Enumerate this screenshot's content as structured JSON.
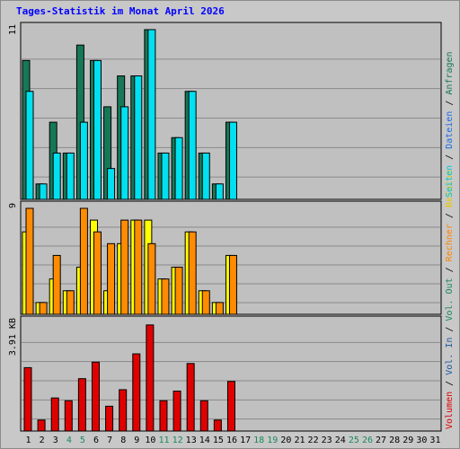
{
  "title": "Tages-Statistik im Monat April 2026",
  "colors": {
    "background": "#c8c8c8",
    "plot_background": "#c0c0c0",
    "title": "#0000ff",
    "day_weekday": "#000000",
    "day_weekend": "#1a8a5a",
    "anfragen": "#167858",
    "dateien": "#1e6ae0",
    "seiten": "#00c8dc",
    "besuche": "#e6c800",
    "rechner": "#ff8000",
    "vol_out": "#1a8a5a",
    "vol_in": "#1e5aa0",
    "volumen": "#e00000",
    "bar_anfragen": "#167858",
    "bar_dateien": "#00e0f0",
    "bar_besuche": "#ffff00",
    "bar_rechner": "#ff8c00",
    "bar_volumen": "#e00000"
  },
  "right_label": {
    "top": [
      {
        "text": "Seiten",
        "color_key": "seiten"
      },
      {
        "text": " / ",
        "color_key": "sep"
      },
      {
        "text": "Dateien",
        "color_key": "dateien"
      },
      {
        "text": " / ",
        "color_key": "sep"
      },
      {
        "text": "Anfragen",
        "color_key": "anfragen"
      }
    ],
    "bottom": [
      {
        "text": "Volumen",
        "color_key": "volumen"
      },
      {
        "text": " / ",
        "color_key": "sep"
      },
      {
        "text": "Vol. In",
        "color_key": "vol_in"
      },
      {
        "text": " / ",
        "color_key": "sep"
      },
      {
        "text": "Vol. Out",
        "color_key": "vol_out"
      },
      {
        "text": " / ",
        "color_key": "sep"
      },
      {
        "text": "Rechner",
        "color_key": "rechner"
      },
      {
        "text": " / ",
        "color_key": "sep"
      },
      {
        "text": "Besuche",
        "color_key": "besuche"
      }
    ]
  },
  "chart_data": [
    {
      "type": "bar",
      "name": "hits-files-pages",
      "max_label": "11",
      "ylim": [
        0,
        11
      ],
      "grid": true,
      "categories": [
        "1",
        "2",
        "3",
        "4",
        "5",
        "6",
        "7",
        "8",
        "9",
        "10",
        "11",
        "12",
        "13",
        "14",
        "15",
        "16",
        "17",
        "18",
        "19",
        "20",
        "21",
        "22",
        "23",
        "24",
        "25",
        "26",
        "27",
        "28",
        "29",
        "30",
        "31"
      ],
      "series": [
        {
          "name": "Anfragen",
          "values": [
            9,
            1,
            5,
            3,
            10,
            9,
            6,
            8,
            8,
            11,
            3,
            4,
            7,
            3,
            1,
            5,
            0,
            0,
            0,
            0,
            0,
            0,
            0,
            0,
            0,
            0,
            0,
            0,
            0,
            0,
            0
          ]
        },
        {
          "name": "Seiten",
          "values": [
            7,
            1,
            3,
            3,
            5,
            9,
            2,
            6,
            8,
            11,
            3,
            4,
            7,
            3,
            1,
            5,
            0,
            0,
            0,
            0,
            0,
            0,
            0,
            0,
            0,
            0,
            0,
            0,
            0,
            0,
            0
          ]
        }
      ]
    },
    {
      "type": "bar",
      "name": "visits-hosts",
      "max_label": "9",
      "ylim": [
        0,
        9
      ],
      "grid": true,
      "categories": [
        "1",
        "2",
        "3",
        "4",
        "5",
        "6",
        "7",
        "8",
        "9",
        "10",
        "11",
        "12",
        "13",
        "14",
        "15",
        "16",
        "17",
        "18",
        "19",
        "20",
        "21",
        "22",
        "23",
        "24",
        "25",
        "26",
        "27",
        "28",
        "29",
        "30",
        "31"
      ],
      "series": [
        {
          "name": "Besuche",
          "values": [
            7,
            1,
            3,
            2,
            4,
            8,
            2,
            6,
            8,
            8,
            3,
            4,
            7,
            2,
            1,
            5,
            0,
            0,
            0,
            0,
            0,
            0,
            0,
            0,
            0,
            0,
            0,
            0,
            0,
            0,
            0
          ]
        },
        {
          "name": "Rechner",
          "values": [
            9,
            1,
            5,
            2,
            9,
            7,
            6,
            8,
            8,
            6,
            3,
            4,
            7,
            2,
            1,
            5,
            0,
            0,
            0,
            0,
            0,
            0,
            0,
            0,
            0,
            0,
            0,
            0,
            0,
            0,
            0
          ]
        }
      ]
    },
    {
      "type": "bar",
      "name": "volume",
      "max_label": "3.91 KB",
      "ylim": [
        0,
        3.91
      ],
      "grid": true,
      "categories": [
        "1",
        "2",
        "3",
        "4",
        "5",
        "6",
        "7",
        "8",
        "9",
        "10",
        "11",
        "12",
        "13",
        "14",
        "15",
        "16",
        "17",
        "18",
        "19",
        "20",
        "21",
        "22",
        "23",
        "24",
        "25",
        "26",
        "27",
        "28",
        "29",
        "30",
        "31"
      ],
      "series": [
        {
          "name": "Volumen",
          "values": [
            2.3,
            0.4,
            1.2,
            1.1,
            1.9,
            2.5,
            0.9,
            1.5,
            2.8,
            3.85,
            1.1,
            1.45,
            2.45,
            1.1,
            0.4,
            1.8,
            0,
            0,
            0,
            0,
            0,
            0,
            0,
            0,
            0,
            0,
            0,
            0,
            0,
            0,
            0
          ]
        }
      ]
    }
  ],
  "weekend_days": [
    "4",
    "5",
    "11",
    "12",
    "18",
    "19",
    "25",
    "26"
  ]
}
